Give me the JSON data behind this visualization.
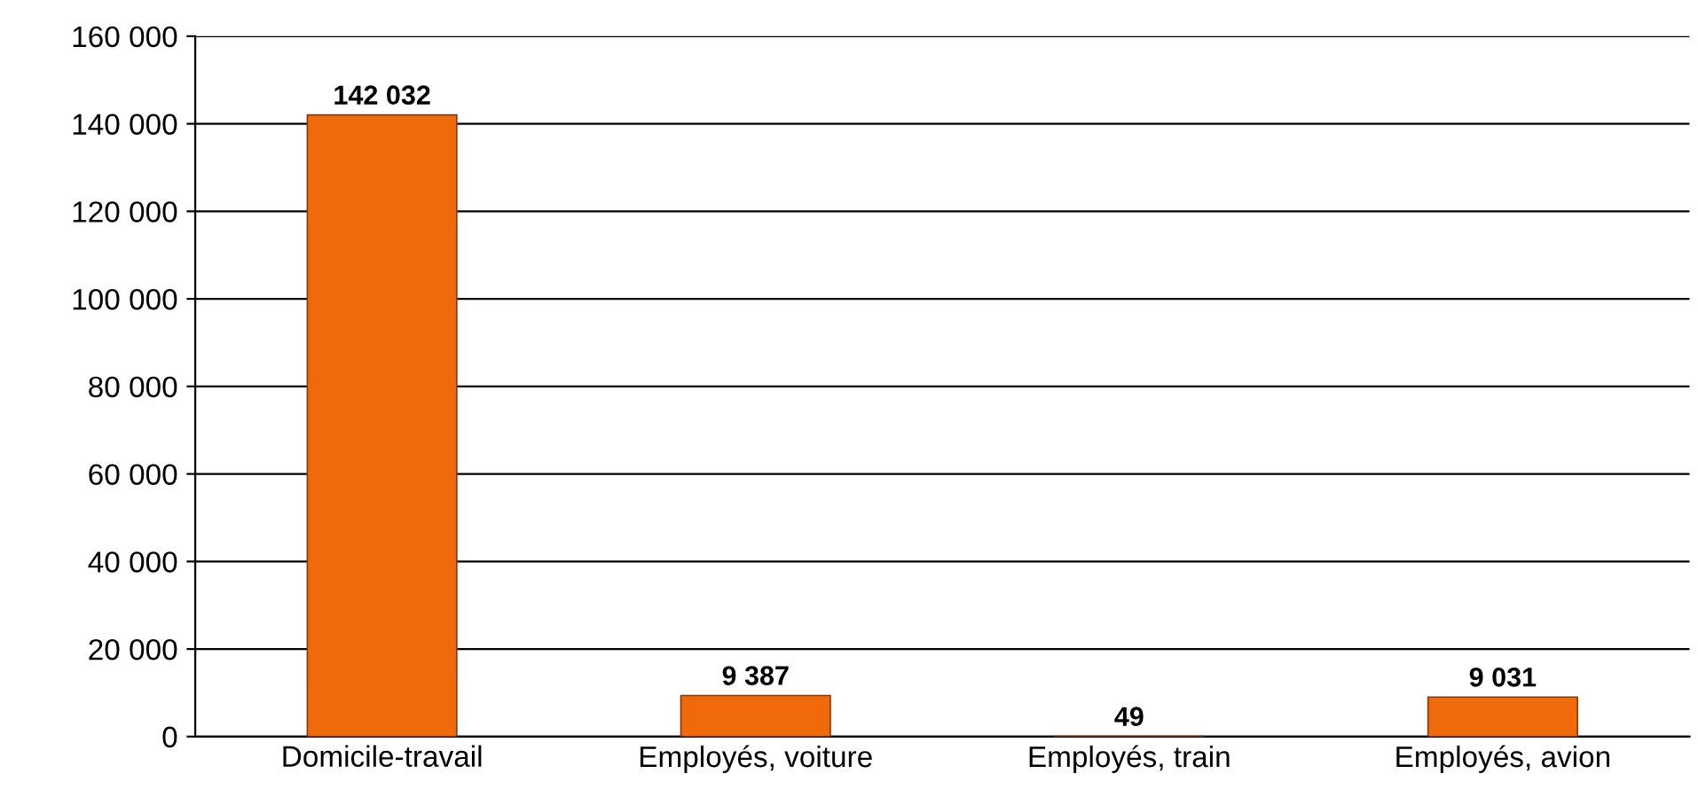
{
  "chart_data": {
    "type": "bar",
    "categories": [
      "Domicile-travail",
      "Employés, voiture",
      "Employés, train",
      "Employés, avion"
    ],
    "values": [
      142032,
      9387,
      49,
      9031
    ],
    "value_labels": [
      "142 032",
      "9 387",
      "49",
      "9 031"
    ],
    "color": "#f06a0c",
    "ylim": [
      0,
      160000
    ],
    "yticks": [
      {
        "value": 0,
        "label": "0"
      },
      {
        "value": 20000,
        "label": "20 000"
      },
      {
        "value": 40000,
        "label": "40 000"
      },
      {
        "value": 60000,
        "label": "60 000"
      },
      {
        "value": 80000,
        "label": "80 000"
      },
      {
        "value": 100000,
        "label": "100 000"
      },
      {
        "value": 120000,
        "label": "120 000"
      },
      {
        "value": 140000,
        "label": "140 000"
      },
      {
        "value": 160000,
        "label": "160 000"
      }
    ],
    "grid": "y",
    "legend": false
  }
}
